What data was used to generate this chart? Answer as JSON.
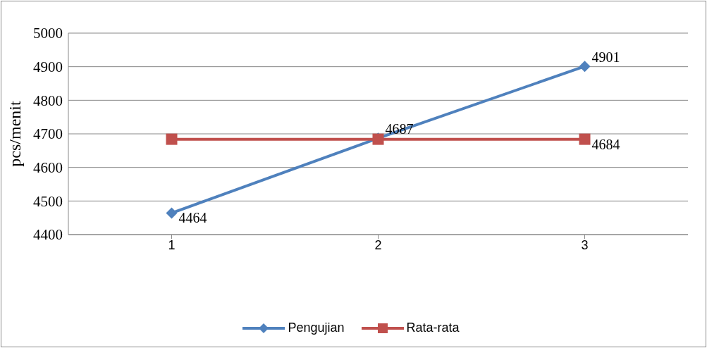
{
  "chart_data": {
    "type": "line",
    "ylabel": "pcs/menit",
    "categories": [
      "1",
      "2",
      "3"
    ],
    "series": [
      {
        "name": "Pengujian",
        "color": "#4f81bd",
        "marker": "diamond",
        "values": [
          4464,
          4687,
          4901
        ],
        "value_labels": [
          "4464",
          "4687",
          "4901"
        ]
      },
      {
        "name": "Rata-rata",
        "color": "#c0504d",
        "marker": "square",
        "values": [
          4684,
          4684,
          4684
        ],
        "value_labels": [
          null,
          null,
          "4684"
        ]
      }
    ],
    "ylim": [
      4400,
      5000
    ],
    "yticks": [
      4400,
      4500,
      4600,
      4700,
      4800,
      4900,
      5000
    ],
    "grid": "y",
    "legend": "bottom"
  }
}
